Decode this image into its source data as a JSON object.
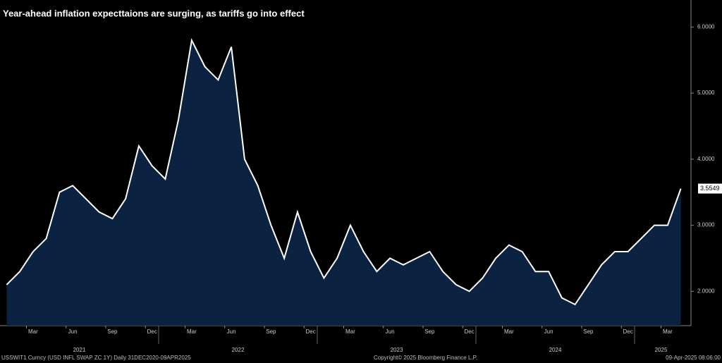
{
  "chart_data": {
    "type": "area",
    "title": "Year-ahead inflation expecttaions are surging, as tariffs go into effect",
    "source": "USSWIT1 Curncy (USD INFL SWAP ZC 1Y)  Daily 31DEC2020-09APR2025",
    "copyright": "Copyright© 2025 Bloomberg Finance L.P.",
    "timestamp": "09-Apr-2025 08:06:00",
    "x": [
      "2021-01",
      "2021-02",
      "2021-03",
      "2021-04",
      "2021-05",
      "2021-06",
      "2021-07",
      "2021-08",
      "2021-09",
      "2021-10",
      "2021-11",
      "2021-12",
      "2022-01",
      "2022-02",
      "2022-03",
      "2022-04",
      "2022-05",
      "2022-06",
      "2022-07",
      "2022-08",
      "2022-09",
      "2022-10",
      "2022-11",
      "2022-12",
      "2023-01",
      "2023-02",
      "2023-03",
      "2023-04",
      "2023-05",
      "2023-06",
      "2023-07",
      "2023-08",
      "2023-09",
      "2023-10",
      "2023-11",
      "2023-12",
      "2024-01",
      "2024-02",
      "2024-03",
      "2024-04",
      "2024-05",
      "2024-06",
      "2024-07",
      "2024-08",
      "2024-09",
      "2024-10",
      "2024-11",
      "2024-12",
      "2025-01",
      "2025-02",
      "2025-03",
      "2025-04"
    ],
    "series": [
      {
        "name": "USSWIT1 Curncy",
        "color": "#ffffff",
        "fill": "#0b2240",
        "values": [
          2.1,
          2.3,
          2.6,
          2.8,
          3.5,
          3.6,
          3.4,
          3.2,
          3.1,
          3.4,
          4.2,
          3.9,
          3.7,
          4.6,
          5.8,
          5.4,
          5.2,
          5.7,
          4.0,
          3.6,
          3.0,
          2.5,
          3.2,
          2.6,
          2.2,
          2.5,
          3.0,
          2.6,
          2.3,
          2.5,
          2.4,
          2.5,
          2.6,
          2.3,
          2.1,
          2.0,
          2.2,
          2.5,
          2.7,
          2.6,
          2.3,
          2.3,
          1.9,
          1.8,
          2.1,
          2.4,
          2.6,
          2.6,
          2.8,
          3.0,
          3.0,
          3.5549
        ]
      }
    ],
    "xlim": [
      "2021-01",
      "2025-05"
    ],
    "xticks": [
      {
        "value": "2021-03",
        "label": "Mar"
      },
      {
        "value": "2021-06",
        "label": "Jun"
      },
      {
        "value": "2021-09",
        "label": "Sep"
      },
      {
        "value": "2021-12",
        "label": "Dec"
      },
      {
        "value": "2022-03",
        "label": "Mar"
      },
      {
        "value": "2022-06",
        "label": "Jun"
      },
      {
        "value": "2022-09",
        "label": "Sep"
      },
      {
        "value": "2022-12",
        "label": "Dec"
      },
      {
        "value": "2023-03",
        "label": "Mar"
      },
      {
        "value": "2023-06",
        "label": "Jun"
      },
      {
        "value": "2023-09",
        "label": "Sep"
      },
      {
        "value": "2023-12",
        "label": "Dec"
      },
      {
        "value": "2024-03",
        "label": "Mar"
      },
      {
        "value": "2024-06",
        "label": "Jun"
      },
      {
        "value": "2024-09",
        "label": "Sep"
      },
      {
        "value": "2024-12",
        "label": "Dec"
      },
      {
        "value": "2025-03",
        "label": "Mar"
      }
    ],
    "year_labels": [
      "2021",
      "2022",
      "2023",
      "2024",
      "2025"
    ],
    "ylim": [
      1.48,
      6.41
    ],
    "yticks": [
      {
        "value": 2,
        "label": "2.0000"
      },
      {
        "value": 3,
        "label": "3.0000"
      },
      {
        "value": 4,
        "label": "4.0000"
      },
      {
        "value": 5,
        "label": "5.0000"
      },
      {
        "value": 6,
        "label": "6.0000"
      }
    ],
    "grid": false
  }
}
